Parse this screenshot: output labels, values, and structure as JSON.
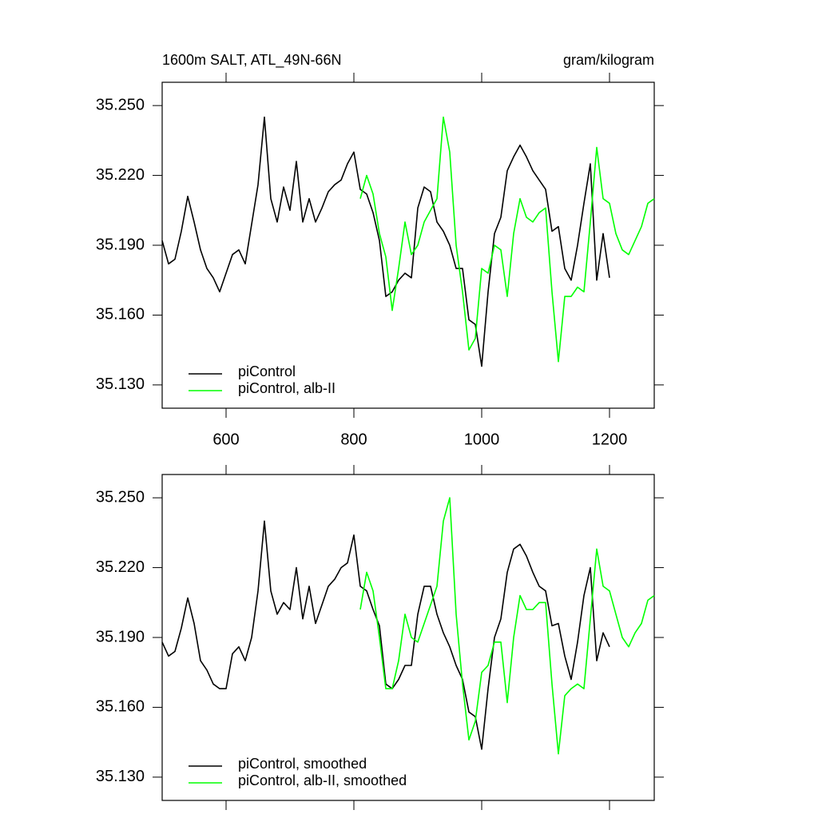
{
  "chart_data": [
    {
      "type": "line",
      "title": "1600m SALT, ATL_49N-66N",
      "units": "gram/kilogram",
      "x": [
        500,
        510,
        520,
        530,
        540,
        550,
        560,
        570,
        580,
        590,
        600,
        610,
        620,
        630,
        640,
        650,
        660,
        670,
        680,
        690,
        700,
        710,
        720,
        730,
        740,
        750,
        760,
        770,
        780,
        790,
        800,
        810,
        820,
        830,
        840,
        850,
        860,
        870,
        880,
        890,
        900,
        910,
        920,
        930,
        940,
        950,
        960,
        970,
        980,
        990,
        1000,
        1010,
        1020,
        1030,
        1040,
        1050,
        1060,
        1070,
        1080,
        1090,
        1100,
        1110,
        1120,
        1130,
        1140,
        1150,
        1160,
        1170,
        1180,
        1190,
        1200,
        1210,
        1220,
        1230,
        1240,
        1250,
        1260,
        1270
      ],
      "series": [
        {
          "name": "piControl",
          "color": "#000000",
          "values": [
            35.192,
            35.182,
            35.184,
            35.196,
            35.211,
            35.2,
            35.188,
            35.18,
            35.176,
            35.17,
            35.178,
            35.186,
            35.188,
            35.182,
            35.199,
            35.216,
            35.245,
            35.21,
            35.2,
            35.215,
            35.205,
            35.226,
            35.2,
            35.21,
            35.2,
            35.206,
            35.213,
            35.216,
            35.218,
            35.225,
            35.23,
            35.214,
            35.212,
            35.204,
            35.192,
            35.168,
            35.17,
            35.175,
            35.178,
            35.176,
            35.206,
            35.215,
            35.213,
            35.2,
            35.196,
            35.19,
            35.18,
            35.18,
            35.158,
            35.156,
            35.138,
            35.17,
            35.195,
            35.202,
            35.222,
            35.228,
            35.233,
            35.228,
            35.222,
            35.218,
            35.214,
            35.196,
            35.198,
            35.18,
            35.175,
            35.19,
            35.208,
            35.225,
            35.175,
            35.195,
            35.176,
            null,
            null,
            null,
            null,
            null,
            null,
            null
          ]
        },
        {
          "name": "piControl, alb-II",
          "color": "#00ff00",
          "values": [
            null,
            null,
            null,
            null,
            null,
            null,
            null,
            null,
            null,
            null,
            null,
            null,
            null,
            null,
            null,
            null,
            null,
            null,
            null,
            null,
            null,
            null,
            null,
            null,
            null,
            null,
            null,
            null,
            null,
            null,
            null,
            35.21,
            35.22,
            35.212,
            35.195,
            35.185,
            35.162,
            35.18,
            35.2,
            35.186,
            35.19,
            35.2,
            35.205,
            35.21,
            35.245,
            35.23,
            35.19,
            35.17,
            35.145,
            35.15,
            35.18,
            35.178,
            35.19,
            35.188,
            35.168,
            35.195,
            35.21,
            35.202,
            35.2,
            35.204,
            35.206,
            35.17,
            35.14,
            35.168,
            35.168,
            35.172,
            35.17,
            35.2,
            35.232,
            35.21,
            35.208,
            35.195,
            35.188,
            35.186,
            35.192,
            35.198,
            35.208,
            35.21
          ]
        }
      ],
      "xlim": [
        500,
        1270
      ],
      "ylim": [
        35.12,
        35.26
      ],
      "xticks": [
        600,
        800,
        1000,
        1200
      ],
      "xtick_labels": true,
      "yticks": [
        {
          "value": 35.13,
          "label": "35.130"
        },
        {
          "value": 35.16,
          "label": "35.160"
        },
        {
          "value": 35.19,
          "label": "35.190"
        },
        {
          "value": 35.22,
          "label": "35.220"
        },
        {
          "value": 35.25,
          "label": "35.250"
        }
      ],
      "legend": "lower left"
    },
    {
      "type": "line",
      "x": [
        500,
        510,
        520,
        530,
        540,
        550,
        560,
        570,
        580,
        590,
        600,
        610,
        620,
        630,
        640,
        650,
        660,
        670,
        680,
        690,
        700,
        710,
        720,
        730,
        740,
        750,
        760,
        770,
        780,
        790,
        800,
        810,
        820,
        830,
        840,
        850,
        860,
        870,
        880,
        890,
        900,
        910,
        920,
        930,
        940,
        950,
        960,
        970,
        980,
        990,
        1000,
        1010,
        1020,
        1030,
        1040,
        1050,
        1060,
        1070,
        1080,
        1090,
        1100,
        1110,
        1120,
        1130,
        1140,
        1150,
        1160,
        1170,
        1180,
        1190,
        1200,
        1210,
        1220,
        1230,
        1240,
        1250,
        1260,
        1270
      ],
      "series": [
        {
          "name": "piControl, smoothed",
          "color": "#000000",
          "values": [
            35.188,
            35.182,
            35.184,
            35.194,
            35.207,
            35.196,
            35.18,
            35.176,
            35.17,
            35.168,
            35.168,
            35.183,
            35.186,
            35.18,
            35.19,
            35.21,
            35.24,
            35.21,
            35.2,
            35.205,
            35.202,
            35.22,
            35.198,
            35.212,
            35.196,
            35.204,
            35.212,
            35.215,
            35.22,
            35.222,
            35.234,
            35.212,
            35.21,
            35.202,
            35.195,
            35.17,
            35.168,
            35.172,
            35.178,
            35.178,
            35.2,
            35.212,
            35.212,
            35.2,
            35.192,
            35.186,
            35.178,
            35.172,
            35.158,
            35.156,
            35.142,
            35.168,
            35.19,
            35.198,
            35.218,
            35.228,
            35.23,
            35.225,
            35.218,
            35.212,
            35.21,
            35.195,
            35.196,
            35.182,
            35.172,
            35.188,
            35.208,
            35.22,
            35.18,
            35.192,
            35.186,
            null,
            null,
            null,
            null,
            null,
            null,
            null
          ]
        },
        {
          "name": "piControl, alb-II, smoothed",
          "color": "#00ff00",
          "values": [
            null,
            null,
            null,
            null,
            null,
            null,
            null,
            null,
            null,
            null,
            null,
            null,
            null,
            null,
            null,
            null,
            null,
            null,
            null,
            null,
            null,
            null,
            null,
            null,
            null,
            null,
            null,
            null,
            null,
            null,
            null,
            35.202,
            35.218,
            35.21,
            35.19,
            35.168,
            35.168,
            35.18,
            35.2,
            35.19,
            35.188,
            35.196,
            35.204,
            35.212,
            35.24,
            35.25,
            35.2,
            35.17,
            35.146,
            35.154,
            35.175,
            35.178,
            35.188,
            35.188,
            35.162,
            35.19,
            35.208,
            35.202,
            35.202,
            35.205,
            35.205,
            35.17,
            35.14,
            35.165,
            35.168,
            35.17,
            35.168,
            35.198,
            35.228,
            35.212,
            35.21,
            35.2,
            35.19,
            35.186,
            35.192,
            35.196,
            35.206,
            35.208
          ]
        }
      ],
      "xlim": [
        500,
        1270
      ],
      "ylim": [
        35.12,
        35.26
      ],
      "xticks": [
        600,
        800,
        1000,
        1200
      ],
      "xtick_labels": false,
      "yticks": [
        {
          "value": 35.13,
          "label": "35.130"
        },
        {
          "value": 35.16,
          "label": "35.160"
        },
        {
          "value": 35.19,
          "label": "35.190"
        },
        {
          "value": 35.22,
          "label": "35.220"
        },
        {
          "value": 35.25,
          "label": "35.250"
        }
      ],
      "legend": "lower left"
    }
  ]
}
